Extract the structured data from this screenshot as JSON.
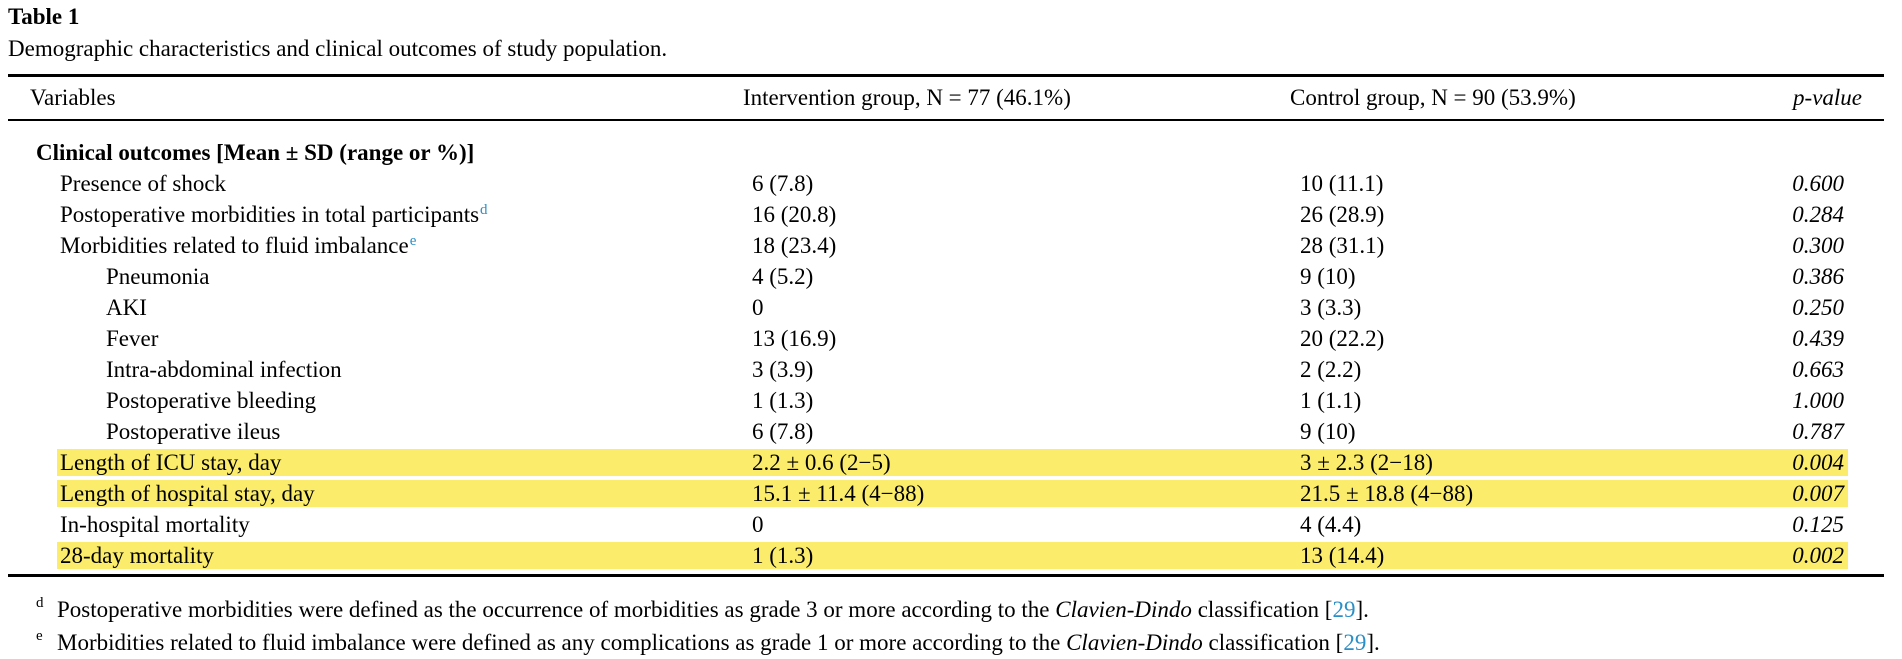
{
  "table": {
    "title": "Table 1",
    "caption": "Demographic characteristics and clinical outcomes of study population.",
    "headers": {
      "variables": "Variables",
      "intervention": "Intervention group, N = 77 (46.1%)",
      "control": "Control group, N = 90 (53.9%)",
      "p_value": "p-value"
    },
    "section_label": "Clinical outcomes [Mean ± SD (range or %)]",
    "rows": [
      {
        "label": "Presence of shock",
        "sup": "",
        "intervention": "6 (7.8)",
        "control": "10 (11.1)",
        "p": "0.600",
        "highlight": false
      },
      {
        "label": "Postoperative morbidities in total participants",
        "sup": "d",
        "intervention": "16 (20.8)",
        "control": "26 (28.9)",
        "p": "0.284",
        "highlight": false
      },
      {
        "label": "Morbidities related to fluid imbalance",
        "sup": "e",
        "intervention": "18 (23.4)",
        "control": "28 (31.1)",
        "p": "0.300",
        "highlight": false
      },
      {
        "label": "Pneumonia",
        "sup": "",
        "intervention": "4 (5.2)",
        "control": "9 (10)",
        "p": "0.386",
        "highlight": false
      },
      {
        "label": "AKI",
        "sup": "",
        "intervention": "0",
        "control": "3 (3.3)",
        "p": "0.250",
        "highlight": false
      },
      {
        "label": "Fever",
        "sup": "",
        "intervention": "13 (16.9)",
        "control": "20 (22.2)",
        "p": "0.439",
        "highlight": false
      },
      {
        "label": "Intra-abdominal infection",
        "sup": "",
        "intervention": "3 (3.9)",
        "control": "2 (2.2)",
        "p": "0.663",
        "highlight": false
      },
      {
        "label": "Postoperative bleeding",
        "sup": "",
        "intervention": "1 (1.3)",
        "control": "1 (1.1)",
        "p": "1.000",
        "highlight": false
      },
      {
        "label": "Postoperative ileus",
        "sup": "",
        "intervention": "6 (7.8)",
        "control": "9 (10)",
        "p": "0.787",
        "highlight": false
      },
      {
        "label": "Length of ICU stay, day",
        "sup": "",
        "intervention": "2.2 ± 0.6 (2−5)",
        "control": "3 ± 2.3 (2−18)",
        "p": "0.004",
        "highlight": true
      },
      {
        "label": "Length of hospital stay, day",
        "sup": "",
        "intervention": "15.1 ± 11.4 (4−88)",
        "control": "21.5 ± 18.8 (4−88)",
        "p": "0.007",
        "highlight": true
      },
      {
        "label": "In-hospital mortality",
        "sup": "",
        "intervention": "0",
        "control": "4 (4.4)",
        "p": "0.125",
        "highlight": false
      },
      {
        "label": "28-day mortality",
        "sup": "",
        "intervention": "1 (1.3)",
        "control": "13 (14.4)",
        "p": "0.002",
        "highlight": true
      }
    ],
    "highlight_color": "#fbed6b",
    "link_color": "#2a8fc7"
  },
  "footnotes": [
    {
      "mark": "d",
      "text_before": "Postoperative morbidities were defined as the occurrence of morbidities as grade 3 or more according to the ",
      "italic": "Clavien-Dindo",
      "text_after": " classification [",
      "cite": "29",
      "end": "]."
    },
    {
      "mark": "e",
      "text_before": "Morbidities related to fluid imbalance were defined as any complications as grade 1 or more according to the ",
      "italic": "Clavien-Dindo",
      "text_after": " classification [",
      "cite": "29",
      "end": "]."
    }
  ]
}
